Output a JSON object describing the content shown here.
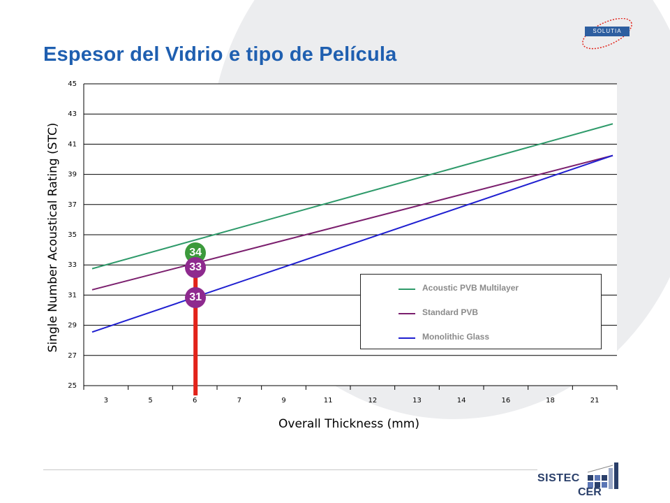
{
  "page": {
    "title": "Espesor del Vidrio e tipo de Película"
  },
  "logos": {
    "top_right": "SOLUTIA",
    "bottom_right_line1": "SISTEC",
    "bottom_right_line2": "CER"
  },
  "chart_data": {
    "type": "line",
    "xlabel": "Overall Thickness (mm)",
    "ylabel": "Single Number Acoustical Rating (STC)",
    "categories": [
      "3",
      "5",
      "6",
      "7",
      "9",
      "11",
      "12",
      "13",
      "14",
      "16",
      "18",
      "21"
    ],
    "ylim": [
      25,
      45
    ],
    "yticks": [
      25,
      27,
      29,
      31,
      33,
      35,
      37,
      39,
      41,
      43,
      45
    ],
    "grid": true,
    "legend_position": "bottom-right",
    "series": [
      {
        "name": "Acoustic PVB Multilayer",
        "color": "#2e9a6a",
        "start": 32.75,
        "end": 42.35
      },
      {
        "name": "Standard PVB",
        "color": "#7b1f6e",
        "start": 31.35,
        "end": 40.25
      },
      {
        "name": "Monolithic Glass",
        "color": "#1f1fd0",
        "start": 28.55,
        "end": 40.25
      }
    ],
    "highlight": {
      "x_category": "6",
      "color": "#e2231a",
      "markers": [
        {
          "label": "34",
          "value": 34,
          "color": "#3c9a3c"
        },
        {
          "label": "33",
          "value": 33,
          "color": "#8e2a8e"
        },
        {
          "label": "31",
          "value": 31,
          "color": "#8e2a8e"
        }
      ]
    }
  }
}
